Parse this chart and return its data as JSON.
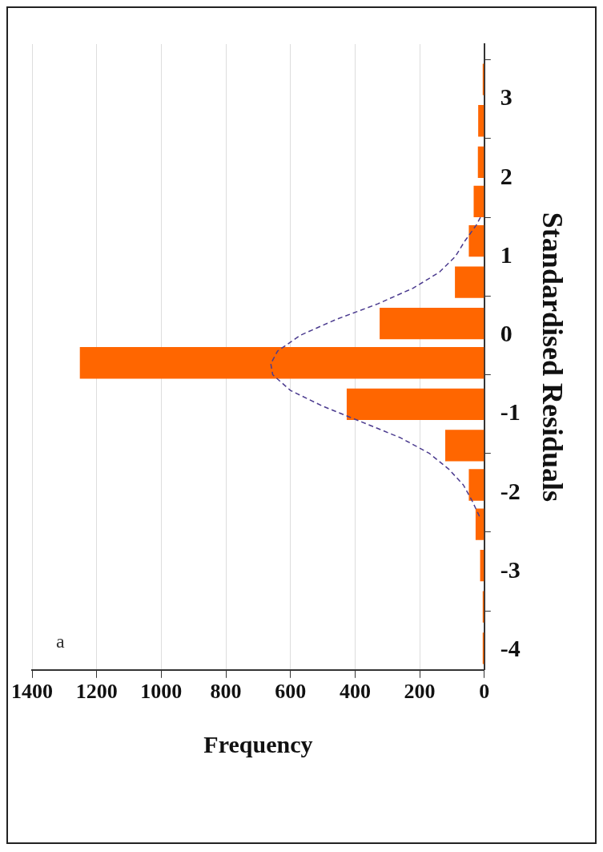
{
  "chart_data": {
    "type": "histogram",
    "orientation": "horizontal",
    "xlabel": "Frequency",
    "ylabel": "Standardised Residuals",
    "annotations": [
      "a"
    ],
    "bins": [
      -4.25,
      -3.7,
      -3.2,
      -2.65,
      -2.15,
      -1.65,
      -1.15,
      -0.6,
      -0.1,
      0.4,
      0.95,
      1.45,
      1.95,
      2.45,
      3.0,
      3.5
    ],
    "values": [
      5,
      5,
      13,
      27,
      48,
      121,
      426,
      1252,
      324,
      91,
      48,
      33,
      20,
      19,
      5
    ],
    "color": "#ff6600",
    "xlim": [
      1400,
      0
    ],
    "xticks": [
      0,
      200,
      400,
      600,
      800,
      1000,
      1200,
      1400
    ],
    "ylim": [
      -4.25,
      3.7
    ],
    "yticks": [
      -4,
      -3,
      -2,
      -1,
      0,
      1,
      2,
      3
    ],
    "grid": "x",
    "series": [
      {
        "type": "line",
        "color": "#4b3b8f",
        "line_style": "dashed",
        "x": [
          -2.3,
          -2.1,
          -1.9,
          -1.7,
          -1.5,
          -1.3,
          -1.1,
          -0.9,
          -0.7,
          -0.5,
          -0.36,
          -0.2,
          0.0,
          0.2,
          0.4,
          0.6,
          0.8,
          1.0,
          1.2,
          1.4,
          1.5
        ],
        "values": [
          15,
          38,
          65,
          110,
          170,
          260,
          380,
          500,
          600,
          655,
          661,
          640,
          570,
          460,
          330,
          220,
          140,
          90,
          60,
          25,
          12
        ]
      }
    ]
  }
}
